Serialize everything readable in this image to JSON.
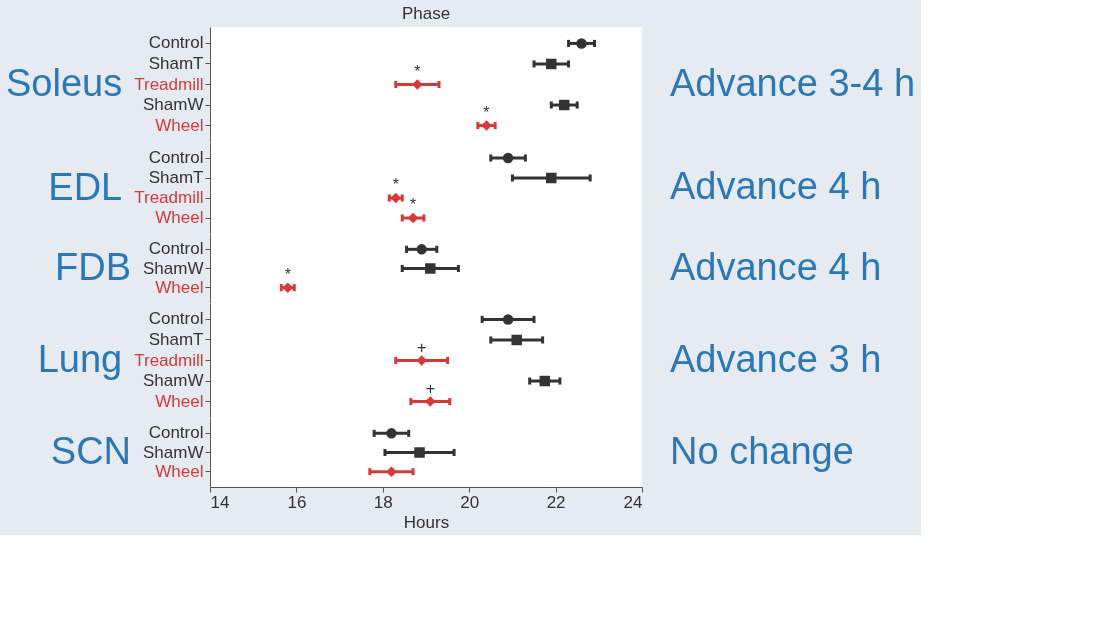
{
  "chart_data": [
    {
      "type": "scatter",
      "orientation": "horizontal",
      "title": "Phase",
      "ylabel": "Soleus",
      "categories": [
        "Control",
        "ShamT",
        "Treadmill",
        "ShamW",
        "Wheel"
      ],
      "xlim": [
        14,
        24
      ],
      "xticks": [
        14,
        16,
        18,
        20,
        22,
        24
      ],
      "tick_labels": "y",
      "grid": false,
      "series": [
        {
          "color": "#333333",
          "marker": "circle",
          "values": [
            22.6,
            null,
            null,
            null,
            null
          ],
          "errors": [
            0.3,
            null,
            null,
            null,
            null
          ]
        },
        {
          "color": "#333333",
          "marker": "square",
          "values": [
            null,
            21.9,
            null,
            22.2,
            null
          ],
          "errors": [
            null,
            0.4,
            null,
            0.3,
            null
          ]
        },
        {
          "color": "#d43a3a",
          "marker": "diamond",
          "values": [
            null,
            null,
            18.8,
            null,
            20.4
          ],
          "errors": [
            null,
            null,
            0.5,
            null,
            0.2
          ]
        }
      ],
      "annotations": [
        "Advance 3-4 h",
        {
          "text": "*",
          "x": 18.8,
          "y": "Treadmill"
        },
        {
          "text": "*",
          "x": 20.4,
          "y": "Wheel"
        }
      ]
    },
    {
      "type": "scatter",
      "orientation": "horizontal",
      "ylabel": "EDL",
      "categories": [
        "Control",
        "ShamT",
        "Treadmill",
        "Wheel"
      ],
      "xlim": [
        14,
        24
      ],
      "xticks": [
        14,
        16,
        18,
        20,
        22,
        24
      ],
      "tick_labels": "y",
      "grid": false,
      "series": [
        {
          "color": "#333333",
          "marker": "circle",
          "values": [
            20.9,
            null,
            null,
            null
          ],
          "errors": [
            0.4,
            null,
            null,
            null
          ]
        },
        {
          "color": "#333333",
          "marker": "square",
          "values": [
            null,
            21.9,
            null,
            null
          ],
          "errors": [
            null,
            0.9,
            null,
            null
          ]
        },
        {
          "color": "#d43a3a",
          "marker": "diamond",
          "values": [
            null,
            null,
            18.3,
            18.7
          ],
          "errors": [
            null,
            null,
            0.15,
            0.25
          ]
        }
      ],
      "annotations": [
        "Advance 4 h",
        {
          "text": "*",
          "x": 18.3,
          "y": "Treadmill"
        },
        {
          "text": "*",
          "x": 18.7,
          "y": "Wheel"
        }
      ]
    },
    {
      "type": "scatter",
      "orientation": "horizontal",
      "ylabel": "FDB",
      "categories": [
        "Control",
        "ShamW",
        "Wheel"
      ],
      "xlim": [
        14,
        24
      ],
      "xticks": [
        14,
        16,
        18,
        20,
        22,
        24
      ],
      "tick_labels": "y",
      "grid": false,
      "series": [
        {
          "color": "#333333",
          "marker": "circle",
          "values": [
            18.9,
            null,
            null
          ],
          "errors": [
            0.35,
            null,
            null
          ]
        },
        {
          "color": "#333333",
          "marker": "square",
          "values": [
            null,
            19.1,
            null
          ],
          "errors": [
            null,
            0.65,
            null
          ]
        },
        {
          "color": "#d43a3a",
          "marker": "diamond",
          "values": [
            null,
            null,
            15.8
          ],
          "errors": [
            null,
            null,
            0.15
          ]
        }
      ],
      "annotations": [
        "Advance 4 h",
        {
          "text": "*",
          "x": 15.8,
          "y": "Wheel"
        }
      ]
    },
    {
      "type": "scatter",
      "orientation": "horizontal",
      "ylabel": "Lung",
      "categories": [
        "Control",
        "ShamT",
        "Treadmill",
        "ShamW",
        "Wheel"
      ],
      "xlim": [
        14,
        24
      ],
      "xticks": [
        14,
        16,
        18,
        20,
        22,
        24
      ],
      "tick_labels": "y",
      "grid": false,
      "series": [
        {
          "color": "#333333",
          "marker": "circle",
          "values": [
            20.9,
            null,
            null,
            null,
            null
          ],
          "errors": [
            0.6,
            null,
            null,
            null,
            null
          ]
        },
        {
          "color": "#333333",
          "marker": "square",
          "values": [
            null,
            21.1,
            null,
            21.75,
            null
          ],
          "errors": [
            null,
            0.6,
            null,
            0.35,
            null
          ]
        },
        {
          "color": "#d43a3a",
          "marker": "diamond",
          "values": [
            null,
            null,
            18.9,
            null,
            19.1
          ],
          "errors": [
            null,
            null,
            0.6,
            null,
            0.45
          ]
        }
      ],
      "annotations": [
        "Advance 3 h",
        {
          "text": "+",
          "x": 18.9,
          "y": "Treadmill"
        },
        {
          "text": "+",
          "x": 19.1,
          "y": "Wheel"
        }
      ]
    },
    {
      "type": "scatter",
      "orientation": "horizontal",
      "ylabel": "SCN",
      "xlabel": "Hours",
      "categories": [
        "Control",
        "ShamW",
        "Wheel"
      ],
      "xlim": [
        14,
        24
      ],
      "xticks": [
        14,
        16,
        18,
        20,
        22,
        24
      ],
      "grid": false,
      "series": [
        {
          "color": "#333333",
          "marker": "circle",
          "values": [
            18.2,
            null,
            null
          ],
          "errors": [
            0.4,
            null,
            null
          ]
        },
        {
          "color": "#333333",
          "marker": "square",
          "values": [
            null,
            18.85,
            null
          ],
          "errors": [
            null,
            0.8,
            null
          ]
        },
        {
          "color": "#d43a3a",
          "marker": "diamond",
          "values": [
            null,
            null,
            18.2
          ],
          "errors": [
            null,
            null,
            0.5
          ]
        }
      ],
      "annotations": [
        "No change"
      ]
    }
  ]
}
